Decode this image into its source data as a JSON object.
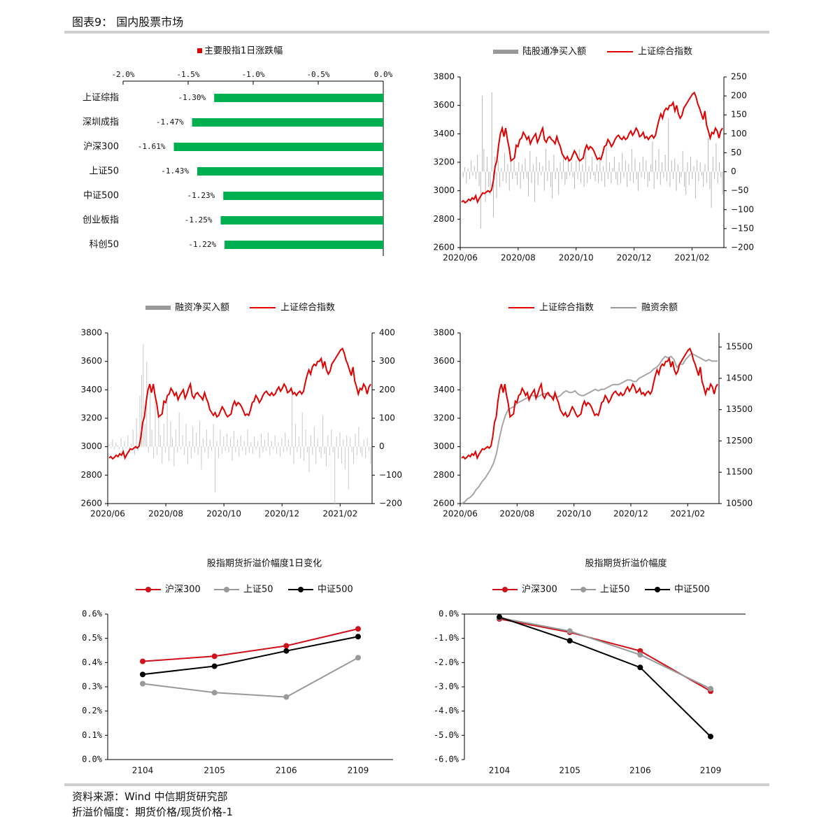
{
  "header": {
    "title": "图表9： 国内股票市场"
  },
  "footer": {
    "source": "资料来源：Wind 中信期货研究部",
    "note": "折溢价幅度：期货价格/现货价格-1"
  },
  "chart_data": [
    {
      "id": "c1",
      "type": "bar",
      "orientation": "horizontal",
      "legend": "主要股指1日涨跌幅",
      "categories": [
        "上证综指",
        "深圳成指",
        "沪深300",
        "上证50",
        "中证500",
        "创业板指",
        "科创50"
      ],
      "values": [
        -1.3,
        -1.47,
        -1.61,
        -1.43,
        -1.23,
        -1.25,
        -1.22
      ],
      "value_labels": [
        "-1.30%",
        "-1.47%",
        "-1.61%",
        "-1.43%",
        "-1.23%",
        "-1.25%",
        "-1.22%"
      ],
      "xlim": [
        -2.0,
        0.0
      ],
      "xticks": [
        "-2.0%",
        "-1.5%",
        "-1.0%",
        "-0.5%",
        "0.0%"
      ],
      "color": "#00b050"
    },
    {
      "id": "c2",
      "type": "line",
      "subtype": "dual-axis bar+line",
      "series": [
        {
          "name": "陆股通净买入额",
          "kind": "bar",
          "axis": "right",
          "color": "#a6a6a6",
          "values": [
            0,
            -15,
            12,
            -30,
            8,
            -20,
            30,
            -10,
            15,
            -20,
            45,
            -38,
            -150,
            200,
            60,
            -80,
            40,
            -40,
            -60,
            210,
            -120,
            40,
            -70,
            30,
            -40,
            10,
            -25,
            50,
            -30,
            20,
            -50,
            40,
            -20,
            30,
            -10,
            -35,
            25,
            -45,
            20,
            -20,
            35,
            -15,
            -65,
            55,
            -30,
            20,
            -80,
            40,
            -35,
            25,
            -10,
            15,
            -50,
            60,
            -25,
            30,
            -40,
            -70,
            45,
            -20,
            10,
            -60,
            25,
            -20,
            40,
            -35,
            -20,
            35,
            -10,
            25,
            -15,
            -45,
            30,
            -20,
            60,
            -30,
            20,
            -40,
            70,
            -30,
            15,
            -20,
            40,
            -10,
            -25,
            20,
            -30,
            45,
            -25,
            15,
            -40,
            65,
            -20,
            25,
            -30,
            10,
            40,
            -20,
            -35,
            25,
            -30,
            50,
            -15,
            30,
            -40,
            20,
            -25,
            60,
            -30,
            35,
            -20,
            -50,
            25,
            -15,
            40,
            -20,
            30,
            -40,
            -25,
            20,
            80,
            -45,
            30,
            -20,
            60,
            -35,
            25,
            -15,
            45,
            -25,
            140,
            -40,
            30,
            -20,
            35,
            -50,
            20,
            -30,
            -15,
            55,
            -40,
            -60,
            25,
            -35,
            40,
            -20,
            15,
            -70,
            30,
            -25,
            25,
            -10,
            -40,
            20,
            -30,
            90,
            -45,
            -95,
            40,
            -20,
            75,
            -30,
            25,
            -15,
            -60
          ]
        },
        {
          "name": "上证综合指数",
          "kind": "line",
          "axis": "left",
          "color": "#e00000"
        }
      ],
      "x_ticks": [
        "2020/06",
        "2020/08",
        "2020/10",
        "2020/12",
        "2021/02"
      ],
      "ylim_left": [
        2600,
        3800
      ],
      "ylim_right": [
        -200,
        250
      ]
    },
    {
      "id": "c3",
      "type": "line",
      "subtype": "dual-axis bar+line",
      "series": [
        {
          "name": "融资净买入额",
          "kind": "bar",
          "axis": "right",
          "color": "#c9c9c9",
          "values": [
            10,
            -5,
            25,
            -10,
            15,
            5,
            -8,
            30,
            -15,
            20,
            -5,
            40,
            -20,
            10,
            60,
            -30,
            100,
            -15,
            180,
            250,
            360,
            80,
            300,
            -20,
            200,
            60,
            -40,
            180,
            -30,
            120,
            40,
            -60,
            80,
            -20,
            160,
            -50,
            90,
            30,
            -70,
            60,
            -20,
            120,
            -10,
            40,
            -30,
            80,
            -60,
            20,
            -40,
            70,
            -20,
            50,
            -30,
            90,
            -80,
            30,
            -20,
            60,
            -40,
            25,
            -15,
            80,
            -160,
            20,
            -40,
            60,
            -25,
            35,
            -15,
            45,
            -20,
            30,
            -50,
            55,
            -20,
            25,
            -35,
            40,
            -15,
            20,
            -30,
            60,
            -20,
            15,
            -25,
            35,
            -10,
            20,
            -40,
            45,
            -20,
            25,
            -15,
            50,
            -30,
            20,
            -10,
            40,
            -25,
            15,
            -35,
            30,
            -20,
            50,
            -15,
            25,
            -30,
            200,
            -60,
            80,
            -20,
            35,
            -40,
            120,
            -50,
            60,
            -20,
            -90,
            40,
            -30,
            70,
            -60,
            30,
            -20,
            -40,
            110,
            -25,
            -70,
            40,
            -30,
            60,
            -20,
            -200,
            35,
            -40,
            50,
            -60,
            25,
            -80,
            40,
            -150,
            30,
            -20,
            -60,
            45,
            -30,
            70,
            -20,
            -35,
            25,
            -40,
            30,
            -15,
            -60
          ]
        },
        {
          "name": "上证综合指数",
          "kind": "line",
          "axis": "left",
          "color": "#e00000"
        }
      ],
      "x_ticks": [
        "2020/06",
        "2020/08",
        "2020/10",
        "2020/12",
        "2021/02"
      ],
      "ylim_left": [
        2600,
        3800
      ],
      "ylim_right": [
        -200,
        400
      ]
    },
    {
      "id": "c4",
      "type": "line",
      "subtype": "dual-axis line",
      "series": [
        {
          "name": "上证综合指数",
          "axis": "left",
          "color": "#e00000"
        },
        {
          "name": "融资余额",
          "axis": "right",
          "color": "#a6a6a6"
        }
      ],
      "x_ticks": [
        "2020/06",
        "2020/08",
        "2020/10",
        "2020/12",
        "2021/02"
      ],
      "ylim_left": [
        2600,
        3800
      ],
      "ylim_right": [
        10500,
        15500
      ],
      "right_values": [
        10500,
        10550,
        10650,
        10700,
        10800,
        10950,
        11050,
        11200,
        11300,
        11450,
        11600,
        11800,
        12100,
        12600,
        13000,
        13300,
        13500,
        13550,
        13600,
        13700,
        13750,
        13800,
        13850,
        13900,
        13950,
        13950,
        13900,
        13950,
        14000,
        14000,
        13950,
        13900,
        13950,
        13900,
        13950,
        14050,
        14100,
        14050,
        14050,
        14100,
        14000,
        13950,
        13950,
        14000,
        14050,
        14100,
        14150,
        14100,
        14150,
        14150,
        14200,
        14250,
        14300,
        14300,
        14300,
        14350,
        14400,
        14450,
        14450,
        14400,
        14400,
        14500,
        14550,
        14600,
        14650,
        14700,
        14800,
        14850,
        14950,
        15100,
        15200,
        15150,
        15200,
        15100,
        14850,
        14950,
        14950,
        15100,
        15200,
        15300,
        15250,
        15200,
        15150,
        15100,
        15050,
        15100,
        15050,
        15050,
        15050
      ]
    },
    {
      "id": "c5",
      "type": "line",
      "title": "股指期货折溢价幅度1日变化",
      "categories": [
        "2104",
        "2105",
        "2106",
        "2109"
      ],
      "series": [
        {
          "name": "沪深300",
          "color": "#d0101a",
          "values": [
            0.405,
            0.426,
            0.469,
            0.539
          ]
        },
        {
          "name": "上证50",
          "color": "#999999",
          "values": [
            0.313,
            0.276,
            0.258,
            0.42
          ]
        },
        {
          "name": "中证500",
          "color": "#000000",
          "values": [
            0.351,
            0.385,
            0.448,
            0.507
          ]
        }
      ],
      "ylim": [
        0,
        0.6
      ],
      "yticks": [
        "0.0%",
        "0.1%",
        "0.2%",
        "0.3%",
        "0.4%",
        "0.5%",
        "0.6%"
      ]
    },
    {
      "id": "c6",
      "type": "line",
      "title": "股指期货折溢价幅度",
      "categories": [
        "2104",
        "2105",
        "2106",
        "2109"
      ],
      "series": [
        {
          "name": "沪深300",
          "color": "#d0101a",
          "values": [
            -0.2,
            -0.75,
            -1.52,
            -3.18
          ]
        },
        {
          "name": "上证50",
          "color": "#999999",
          "values": [
            -0.15,
            -0.7,
            -1.68,
            -3.08
          ]
        },
        {
          "name": "中证500",
          "color": "#000000",
          "values": [
            -0.12,
            -1.1,
            -2.2,
            -5.05
          ]
        }
      ],
      "ylim": [
        -6.0,
        0.0
      ],
      "yticks": [
        "0.0%",
        "-1.0%",
        "-2.0%",
        "-3.0%",
        "-4.0%",
        "-5.0%",
        "-6.0%"
      ]
    }
  ],
  "shanghai_index": [
    2920,
    2930,
    2915,
    2925,
    2940,
    2930,
    2950,
    2940,
    2965,
    2920,
    2945,
    2965,
    2985,
    2980,
    2990,
    3000,
    2990,
    3005,
    3070,
    3170,
    3210,
    3320,
    3400,
    3440,
    3380,
    3440,
    3360,
    3300,
    3210,
    3220,
    3230,
    3320,
    3310,
    3360,
    3370,
    3410,
    3390,
    3360,
    3380,
    3330,
    3360,
    3380,
    3400,
    3340,
    3370,
    3410,
    3440,
    3360,
    3340,
    3370,
    3380,
    3360,
    3350,
    3330,
    3380,
    3340,
    3310,
    3260,
    3240,
    3220,
    3240,
    3210,
    3220,
    3250,
    3280,
    3260,
    3230,
    3210,
    3220,
    3230,
    3290,
    3320,
    3290,
    3310,
    3300,
    3280,
    3250,
    3220,
    3230,
    3220,
    3260,
    3310,
    3320,
    3360,
    3340,
    3310,
    3330,
    3360,
    3380,
    3390,
    3370,
    3360,
    3380,
    3360,
    3370,
    3400,
    3420,
    3390,
    3410,
    3440,
    3420,
    3380,
    3390,
    3410,
    3370,
    3380,
    3360,
    3380,
    3390,
    3370,
    3390,
    3450,
    3500,
    3540,
    3510,
    3560,
    3580,
    3570,
    3600,
    3600,
    3620,
    3560,
    3600,
    3540,
    3510,
    3530,
    3580,
    3600,
    3620,
    3640,
    3660,
    3680,
    3690,
    3660,
    3610,
    3580,
    3540,
    3500,
    3560,
    3460,
    3420,
    3370,
    3410,
    3400,
    3440,
    3420,
    3370,
    3420,
    3440
  ]
}
